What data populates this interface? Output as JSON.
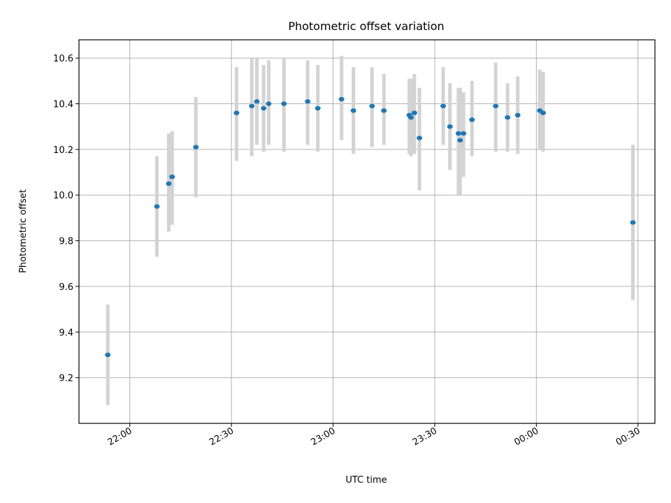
{
  "chart_data": {
    "type": "scatter",
    "title": "Photometric offset variation",
    "xlabel": "UTC time",
    "ylabel": "Photometric offset",
    "x_axis_type": "time",
    "xlim": [
      "21:45",
      "00:35"
    ],
    "ylim": [
      9.0,
      10.68
    ],
    "grid": true,
    "x_ticks": [
      "22:00",
      "22:30",
      "23:00",
      "23:30",
      "00:00",
      "00:30"
    ],
    "y_ticks": [
      "9.2",
      "9.4",
      "9.6",
      "9.8",
      "10.0",
      "10.2",
      "10.4",
      "10.6"
    ],
    "series": [
      {
        "marker_color": "#1f77b4",
        "errorbar_color": "#d3d3d3",
        "points": [
          {
            "time": "21:53:30",
            "y": 9.3,
            "ylow": 9.08,
            "yhigh": 9.52
          },
          {
            "time": "22:08:00",
            "y": 9.95,
            "ylow": 9.73,
            "yhigh": 10.17
          },
          {
            "time": "22:11:30",
            "y": 10.05,
            "ylow": 9.84,
            "yhigh": 10.27
          },
          {
            "time": "22:12:30",
            "y": 10.08,
            "ylow": 9.87,
            "yhigh": 10.28
          },
          {
            "time": "22:19:30",
            "y": 10.21,
            "ylow": 9.99,
            "yhigh": 10.43
          },
          {
            "time": "22:31:30",
            "y": 10.36,
            "ylow": 10.15,
            "yhigh": 10.56
          },
          {
            "time": "22:36:00",
            "y": 10.39,
            "ylow": 10.17,
            "yhigh": 10.6
          },
          {
            "time": "22:37:30",
            "y": 10.41,
            "ylow": 10.22,
            "yhigh": 10.6
          },
          {
            "time": "22:39:30",
            "y": 10.38,
            "ylow": 10.19,
            "yhigh": 10.57
          },
          {
            "time": "22:41:00",
            "y": 10.4,
            "ylow": 10.22,
            "yhigh": 10.59
          },
          {
            "time": "22:45:30",
            "y": 10.4,
            "ylow": 10.19,
            "yhigh": 10.6
          },
          {
            "time": "22:52:30",
            "y": 10.41,
            "ylow": 10.22,
            "yhigh": 10.59
          },
          {
            "time": "22:55:30",
            "y": 10.38,
            "ylow": 10.19,
            "yhigh": 10.57
          },
          {
            "time": "23:02:30",
            "y": 10.42,
            "ylow": 10.24,
            "yhigh": 10.61
          },
          {
            "time": "23:06:00",
            "y": 10.37,
            "ylow": 10.18,
            "yhigh": 10.56
          },
          {
            "time": "23:11:30",
            "y": 10.39,
            "ylow": 10.21,
            "yhigh": 10.56
          },
          {
            "time": "23:15:00",
            "y": 10.37,
            "ylow": 10.22,
            "yhigh": 10.53
          },
          {
            "time": "23:22:30",
            "y": 10.35,
            "ylow": 10.18,
            "yhigh": 10.51
          },
          {
            "time": "23:23:00",
            "y": 10.34,
            "ylow": 10.17,
            "yhigh": 10.51
          },
          {
            "time": "23:24:00",
            "y": 10.36,
            "ylow": 10.18,
            "yhigh": 10.53
          },
          {
            "time": "23:25:30",
            "y": 10.25,
            "ylow": 10.02,
            "yhigh": 10.47
          },
          {
            "time": "23:32:30",
            "y": 10.39,
            "ylow": 10.22,
            "yhigh": 10.56
          },
          {
            "time": "23:34:30",
            "y": 10.3,
            "ylow": 10.11,
            "yhigh": 10.49
          },
          {
            "time": "23:37:00",
            "y": 10.27,
            "ylow": 10.0,
            "yhigh": 10.47
          },
          {
            "time": "23:37:30",
            "y": 10.24,
            "ylow": 10.0,
            "yhigh": 10.47
          },
          {
            "time": "23:38:30",
            "y": 10.27,
            "ylow": 10.08,
            "yhigh": 10.45
          },
          {
            "time": "23:41:00",
            "y": 10.33,
            "ylow": 10.17,
            "yhigh": 10.5
          },
          {
            "time": "23:48:00",
            "y": 10.39,
            "ylow": 10.19,
            "yhigh": 10.58
          },
          {
            "time": "23:51:30",
            "y": 10.34,
            "ylow": 10.19,
            "yhigh": 10.49
          },
          {
            "time": "23:54:30",
            "y": 10.35,
            "ylow": 10.18,
            "yhigh": 10.52
          },
          {
            "time": "00:01:00",
            "y": 10.37,
            "ylow": 10.2,
            "yhigh": 10.55
          },
          {
            "time": "00:02:00",
            "y": 10.36,
            "ylow": 10.19,
            "yhigh": 10.54
          },
          {
            "time": "00:28:30",
            "y": 9.88,
            "ylow": 9.54,
            "yhigh": 10.22
          }
        ]
      }
    ]
  }
}
